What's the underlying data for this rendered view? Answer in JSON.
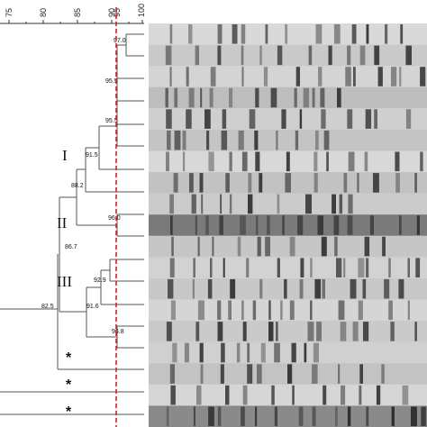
{
  "scale": {
    "ticks": [
      "75",
      "80",
      "85",
      "90",
      "95",
      "100"
    ]
  },
  "cutoff": {
    "value": 95,
    "color": "#c0282d"
  },
  "node_labels": [
    "97.0",
    "95.5",
    "95.5",
    "91.5",
    "88.2",
    "96.0",
    "86.7",
    "92.9",
    "91.6",
    "96.8",
    "82.5"
  ],
  "clusters": [
    "I",
    "II",
    "III"
  ],
  "markers": [
    "*",
    "*",
    "*"
  ],
  "lanes": {
    "count": 19,
    "band_color": "#1e1e1e"
  }
}
